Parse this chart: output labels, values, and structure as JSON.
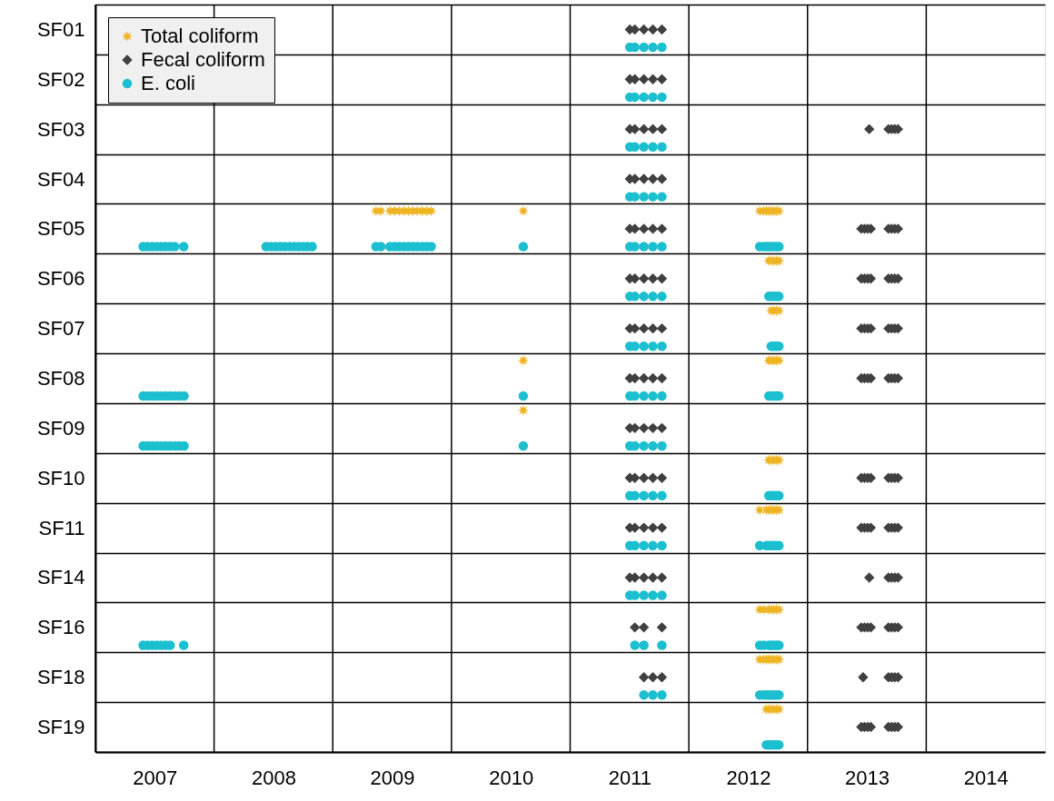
{
  "chart_data": {
    "type": "scatter",
    "orientation": "horizontal",
    "categories": [
      "SF01",
      "SF02",
      "SF03",
      "SF04",
      "SF05",
      "SF06",
      "SF07",
      "SF08",
      "SF09",
      "SF10",
      "SF11",
      "SF14",
      "SF16",
      "SF18",
      "SF19"
    ],
    "xlim": [
      2007,
      2015
    ],
    "xticks": [
      {
        "value": 2007,
        "label": null
      },
      {
        "value": 2007.5,
        "label": "2007"
      },
      {
        "value": 2008,
        "label": null
      },
      {
        "value": 2008.5,
        "label": "2008"
      },
      {
        "value": 2009,
        "label": null
      },
      {
        "value": 2009.5,
        "label": "2009"
      },
      {
        "value": 2010,
        "label": null
      },
      {
        "value": 2010.5,
        "label": "2010"
      },
      {
        "value": 2011,
        "label": null
      },
      {
        "value": 2011.5,
        "label": "2011"
      },
      {
        "value": 2012,
        "label": null
      },
      {
        "value": 2012.5,
        "label": "2012"
      },
      {
        "value": 2013,
        "label": null
      },
      {
        "value": 2013.5,
        "label": "2013"
      },
      {
        "value": 2014,
        "label": null
      },
      {
        "value": 2014.5,
        "label": "2014"
      }
    ],
    "grid": true,
    "legend": "top left",
    "series": [
      {
        "name": "Total coliform",
        "color": "#eeb423",
        "marker": "star",
        "values": [
          2009.364,
          2009.405,
          2009.482,
          2009.52,
          2009.558,
          2009.598,
          2009.636,
          2009.674,
          2009.712,
          2009.753,
          2009.791,
          2009.829,
          2010.605,
          2012.597,
          2012.632,
          2012.653,
          2012.674,
          2012.694,
          2012.715,
          2012.738,
          2012.759,
          2012.674,
          2012.694,
          2012.715,
          2012.738,
          2012.759,
          2012.694,
          2012.715,
          2012.738,
          2012.759,
          2010.605,
          2012.674,
          2012.694,
          2012.715,
          2012.738,
          2012.759,
          2010.605,
          2012.674,
          2012.694,
          2012.715,
          2012.738,
          2012.759,
          2012.597,
          2012.653,
          2012.674,
          2012.694,
          2012.715,
          2012.738,
          2012.759,
          2012.597,
          2012.632,
          2012.674,
          2012.694,
          2012.715,
          2012.738,
          2012.759,
          2012.597,
          2012.632,
          2012.653,
          2012.674,
          2012.694,
          2012.715,
          2012.738,
          2012.759,
          2012.653,
          2012.674,
          2012.694,
          2012.715,
          2012.738,
          2012.759
        ],
        "x": [
          "SF05",
          "SF05",
          "SF05",
          "SF05",
          "SF05",
          "SF05",
          "SF05",
          "SF05",
          "SF05",
          "SF05",
          "SF05",
          "SF05",
          "SF05",
          "SF05",
          "SF05",
          "SF05",
          "SF05",
          "SF05",
          "SF05",
          "SF05",
          "SF05",
          "SF06",
          "SF06",
          "SF06",
          "SF06",
          "SF06",
          "SF07",
          "SF07",
          "SF07",
          "SF07",
          "SF08",
          "SF08",
          "SF08",
          "SF08",
          "SF08",
          "SF08",
          "SF09",
          "SF10",
          "SF10",
          "SF10",
          "SF10",
          "SF10",
          "SF11",
          "SF11",
          "SF11",
          "SF11",
          "SF11",
          "SF11",
          "SF11",
          "SF16",
          "SF16",
          "SF16",
          "SF16",
          "SF16",
          "SF16",
          "SF16",
          "SF18",
          "SF18",
          "SF18",
          "SF18",
          "SF18",
          "SF18",
          "SF18",
          "SF18",
          "SF19",
          "SF19",
          "SF19",
          "SF19",
          "SF19",
          "SF19"
        ]
      },
      {
        "name": "Fecal coliform",
        "color": "#404040",
        "marker": "diamond",
        "values": [
          2011.503,
          2011.545,
          2011.621,
          2011.697,
          2011.773,
          2011.503,
          2011.545,
          2011.621,
          2011.697,
          2011.773,
          2011.503,
          2011.545,
          2011.621,
          2011.697,
          2011.773,
          2013.52,
          2013.682,
          2013.709,
          2013.735,
          2013.762,
          2011.503,
          2011.545,
          2011.621,
          2011.697,
          2011.773,
          2011.503,
          2011.545,
          2011.621,
          2011.697,
          2011.773,
          2013.453,
          2013.48,
          2013.507,
          2013.533,
          2013.682,
          2013.709,
          2013.735,
          2013.762,
          2011.503,
          2011.545,
          2011.621,
          2011.697,
          2011.773,
          2013.453,
          2013.48,
          2013.507,
          2013.533,
          2013.682,
          2013.709,
          2013.735,
          2013.762,
          2011.503,
          2011.545,
          2011.621,
          2011.697,
          2011.773,
          2013.453,
          2013.48,
          2013.507,
          2013.533,
          2013.682,
          2013.709,
          2013.735,
          2013.762,
          2011.503,
          2011.545,
          2011.621,
          2011.697,
          2011.773,
          2013.453,
          2013.48,
          2013.507,
          2013.533,
          2013.682,
          2013.709,
          2013.735,
          2013.762,
          2011.503,
          2011.545,
          2011.621,
          2011.697,
          2011.773,
          2011.503,
          2011.545,
          2011.621,
          2011.697,
          2011.773,
          2013.453,
          2013.48,
          2013.507,
          2013.533,
          2013.682,
          2013.709,
          2013.735,
          2013.762,
          2011.503,
          2011.545,
          2011.621,
          2011.697,
          2011.773,
          2013.453,
          2013.48,
          2013.507,
          2013.533,
          2013.682,
          2013.709,
          2013.735,
          2013.762,
          2011.503,
          2011.545,
          2011.621,
          2011.697,
          2011.773,
          2013.52,
          2013.682,
          2013.709,
          2013.735,
          2013.762,
          2011.545,
          2011.621,
          2011.773,
          2013.453,
          2013.48,
          2013.507,
          2013.533,
          2013.682,
          2013.709,
          2013.735,
          2013.762,
          2011.621,
          2011.697,
          2011.773,
          2013.468,
          2013.682,
          2013.709,
          2013.735,
          2013.762,
          2013.453,
          2013.48,
          2013.507,
          2013.533,
          2013.682,
          2013.709,
          2013.735,
          2013.762
        ],
        "x": [
          "SF01",
          "SF01",
          "SF01",
          "SF01",
          "SF01",
          "SF02",
          "SF02",
          "SF02",
          "SF02",
          "SF02",
          "SF03",
          "SF03",
          "SF03",
          "SF03",
          "SF03",
          "SF03",
          "SF03",
          "SF03",
          "SF03",
          "SF03",
          "SF04",
          "SF04",
          "SF04",
          "SF04",
          "SF04",
          "SF05",
          "SF05",
          "SF05",
          "SF05",
          "SF05",
          "SF05",
          "SF05",
          "SF05",
          "SF05",
          "SF05",
          "SF05",
          "SF05",
          "SF05",
          "SF06",
          "SF06",
          "SF06",
          "SF06",
          "SF06",
          "SF06",
          "SF06",
          "SF06",
          "SF06",
          "SF06",
          "SF06",
          "SF06",
          "SF06",
          "SF07",
          "SF07",
          "SF07",
          "SF07",
          "SF07",
          "SF07",
          "SF07",
          "SF07",
          "SF07",
          "SF07",
          "SF07",
          "SF07",
          "SF07",
          "SF08",
          "SF08",
          "SF08",
          "SF08",
          "SF08",
          "SF08",
          "SF08",
          "SF08",
          "SF08",
          "SF08",
          "SF08",
          "SF08",
          "SF08",
          "SF09",
          "SF09",
          "SF09",
          "SF09",
          "SF09",
          "SF10",
          "SF10",
          "SF10",
          "SF10",
          "SF10",
          "SF10",
          "SF10",
          "SF10",
          "SF10",
          "SF10",
          "SF10",
          "SF10",
          "SF10",
          "SF11",
          "SF11",
          "SF11",
          "SF11",
          "SF11",
          "SF11",
          "SF11",
          "SF11",
          "SF11",
          "SF11",
          "SF11",
          "SF11",
          "SF11",
          "SF14",
          "SF14",
          "SF14",
          "SF14",
          "SF14",
          "SF14",
          "SF14",
          "SF14",
          "SF14",
          "SF14",
          "SF16",
          "SF16",
          "SF16",
          "SF16",
          "SF16",
          "SF16",
          "SF16",
          "SF16",
          "SF16",
          "SF16",
          "SF16",
          "SF18",
          "SF18",
          "SF18",
          "SF18",
          "SF18",
          "SF18",
          "SF18",
          "SF18",
          "SF19",
          "SF19",
          "SF19",
          "SF19",
          "SF19",
          "SF19",
          "SF19",
          "SF19"
        ]
      },
      {
        "name": "E. coli",
        "color": "#1bbfcf",
        "marker": "circle",
        "values": [
          2011.503,
          2011.545,
          2011.621,
          2011.697,
          2011.773,
          2011.503,
          2011.545,
          2011.621,
          2011.697,
          2011.773,
          2011.503,
          2011.545,
          2011.621,
          2011.697,
          2011.773,
          2011.503,
          2011.545,
          2011.621,
          2011.697,
          2011.773,
          2007.402,
          2007.44,
          2007.478,
          2007.516,
          2007.554,
          2007.592,
          2007.63,
          2007.668,
          2007.744,
          2008.438,
          2008.478,
          2008.518,
          2008.557,
          2008.595,
          2008.636,
          2008.674,
          2008.712,
          2008.75,
          2008.788,
          2008.826,
          2009.364,
          2009.405,
          2009.482,
          2009.52,
          2009.558,
          2009.598,
          2009.636,
          2009.674,
          2009.712,
          2009.753,
          2009.791,
          2009.829,
          2010.605,
          2011.503,
          2011.545,
          2011.621,
          2011.697,
          2011.773,
          2012.597,
          2012.632,
          2012.653,
          2012.674,
          2012.694,
          2012.715,
          2012.738,
          2012.759,
          2011.503,
          2011.545,
          2011.621,
          2011.697,
          2011.773,
          2012.674,
          2012.694,
          2012.715,
          2012.738,
          2012.759,
          2011.503,
          2011.545,
          2011.621,
          2011.697,
          2011.773,
          2012.694,
          2012.715,
          2012.738,
          2012.759,
          2007.402,
          2007.44,
          2007.478,
          2007.516,
          2007.554,
          2007.592,
          2007.63,
          2007.67,
          2007.709,
          2007.747,
          2010.605,
          2011.503,
          2011.545,
          2011.621,
          2011.697,
          2011.773,
          2012.674,
          2012.694,
          2012.715,
          2012.738,
          2012.759,
          2007.402,
          2007.44,
          2007.478,
          2007.516,
          2007.554,
          2007.592,
          2007.63,
          2007.67,
          2007.709,
          2007.747,
          2010.605,
          2011.503,
          2011.545,
          2011.621,
          2011.697,
          2011.773,
          2011.503,
          2011.545,
          2011.621,
          2011.697,
          2011.773,
          2012.674,
          2012.694,
          2012.715,
          2012.738,
          2012.759,
          2011.503,
          2011.545,
          2011.621,
          2011.697,
          2011.773,
          2012.597,
          2012.653,
          2012.674,
          2012.694,
          2012.715,
          2012.738,
          2012.759,
          2011.503,
          2011.545,
          2011.621,
          2011.697,
          2011.773,
          2007.402,
          2007.44,
          2007.478,
          2007.516,
          2007.554,
          2007.592,
          2007.63,
          2007.744,
          2011.545,
          2011.621,
          2011.773,
          2012.597,
          2012.632,
          2012.674,
          2012.694,
          2012.715,
          2012.738,
          2012.759,
          2011.621,
          2011.697,
          2011.773,
          2012.597,
          2012.632,
          2012.653,
          2012.674,
          2012.694,
          2012.715,
          2012.738,
          2012.759,
          2012.653,
          2012.674,
          2012.694,
          2012.715,
          2012.738,
          2012.759
        ],
        "x": [
          "SF01",
          "SF01",
          "SF01",
          "SF01",
          "SF01",
          "SF02",
          "SF02",
          "SF02",
          "SF02",
          "SF02",
          "SF03",
          "SF03",
          "SF03",
          "SF03",
          "SF03",
          "SF04",
          "SF04",
          "SF04",
          "SF04",
          "SF04",
          "SF05",
          "SF05",
          "SF05",
          "SF05",
          "SF05",
          "SF05",
          "SF05",
          "SF05",
          "SF05",
          "SF05",
          "SF05",
          "SF05",
          "SF05",
          "SF05",
          "SF05",
          "SF05",
          "SF05",
          "SF05",
          "SF05",
          "SF05",
          "SF05",
          "SF05",
          "SF05",
          "SF05",
          "SF05",
          "SF05",
          "SF05",
          "SF05",
          "SF05",
          "SF05",
          "SF05",
          "SF05",
          "SF05",
          "SF05",
          "SF05",
          "SF05",
          "SF05",
          "SF05",
          "SF05",
          "SF05",
          "SF05",
          "SF05",
          "SF05",
          "SF05",
          "SF05",
          "SF05",
          "SF06",
          "SF06",
          "SF06",
          "SF06",
          "SF06",
          "SF06",
          "SF06",
          "SF06",
          "SF06",
          "SF06",
          "SF07",
          "SF07",
          "SF07",
          "SF07",
          "SF07",
          "SF07",
          "SF07",
          "SF07",
          "SF07",
          "SF08",
          "SF08",
          "SF08",
          "SF08",
          "SF08",
          "SF08",
          "SF08",
          "SF08",
          "SF08",
          "SF08",
          "SF08",
          "SF08",
          "SF08",
          "SF08",
          "SF08",
          "SF08",
          "SF08",
          "SF08",
          "SF08",
          "SF08",
          "SF08",
          "SF09",
          "SF09",
          "SF09",
          "SF09",
          "SF09",
          "SF09",
          "SF09",
          "SF09",
          "SF09",
          "SF09",
          "SF09",
          "SF09",
          "SF09",
          "SF09",
          "SF09",
          "SF09",
          "SF10",
          "SF10",
          "SF10",
          "SF10",
          "SF10",
          "SF10",
          "SF10",
          "SF10",
          "SF10",
          "SF10",
          "SF11",
          "SF11",
          "SF11",
          "SF11",
          "SF11",
          "SF11",
          "SF11",
          "SF11",
          "SF11",
          "SF11",
          "SF11",
          "SF11",
          "SF14",
          "SF14",
          "SF14",
          "SF14",
          "SF14",
          "SF16",
          "SF16",
          "SF16",
          "SF16",
          "SF16",
          "SF16",
          "SF16",
          "SF16",
          "SF16",
          "SF16",
          "SF16",
          "SF16",
          "SF16",
          "SF16",
          "SF16",
          "SF16",
          "SF16",
          "SF16",
          "SF18",
          "SF18",
          "SF18",
          "SF18",
          "SF18",
          "SF18",
          "SF18",
          "SF18",
          "SF18",
          "SF18",
          "SF18",
          "SF19",
          "SF19",
          "SF19",
          "SF19",
          "SF19",
          "SF19"
        ]
      }
    ]
  }
}
